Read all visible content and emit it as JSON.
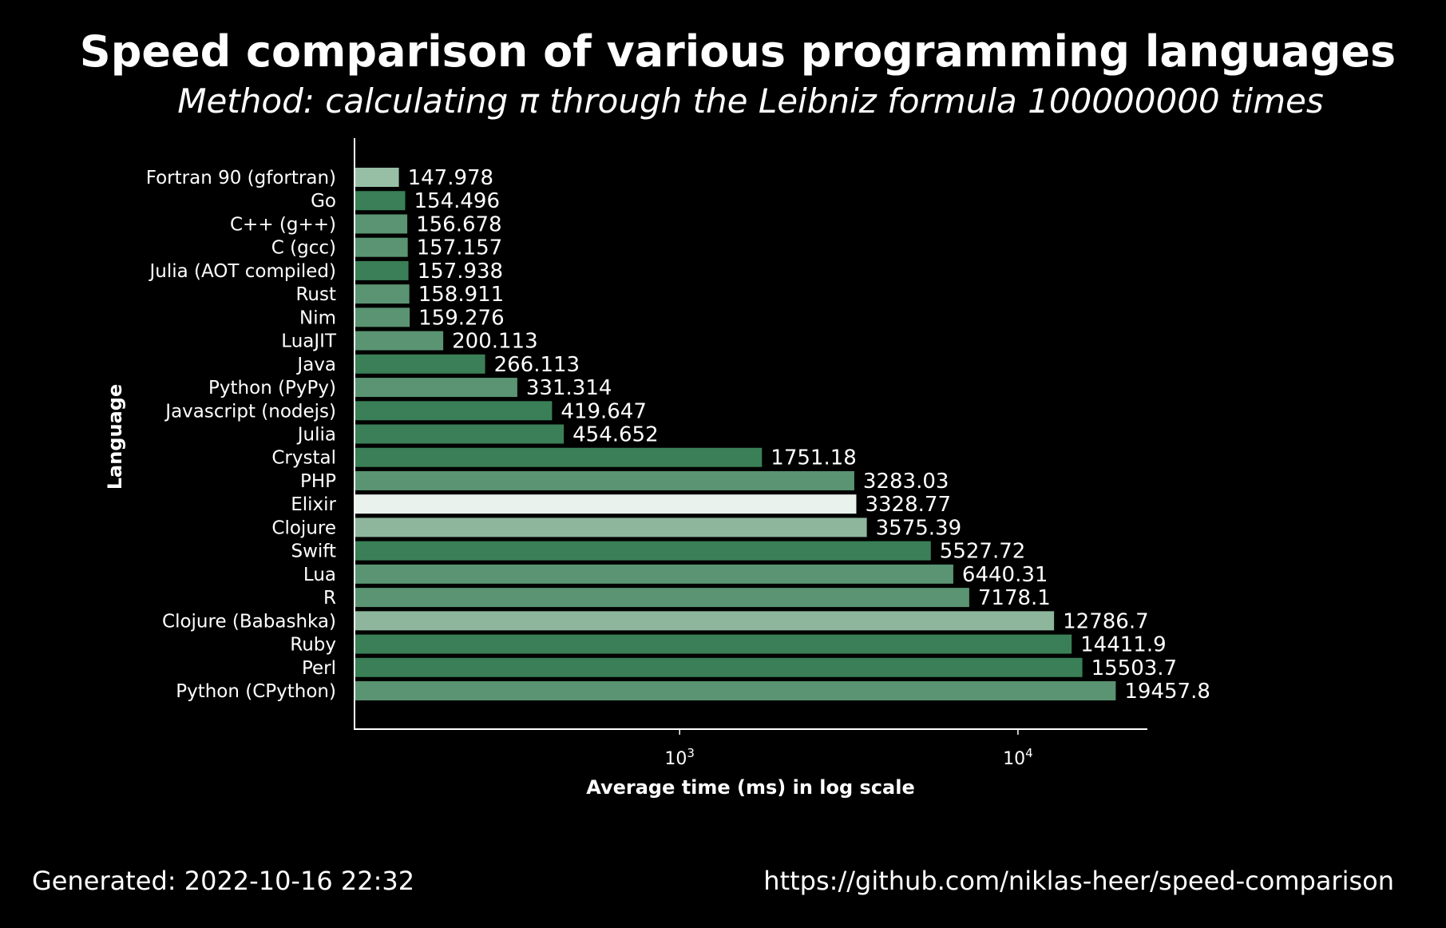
{
  "chart_data": {
    "type": "bar",
    "orientation": "horizontal",
    "title": "Speed comparison of various programming languages",
    "subtitle": "Method: calculating π through the Leibniz formula 100000000 times",
    "xlabel": "Average time (ms) in log scale",
    "ylabel": "Language",
    "x_scale": "log",
    "xlim": [
      110,
      24000
    ],
    "x_ticks": [
      {
        "value": 1000,
        "base": "10",
        "exp": "3"
      },
      {
        "value": 10000,
        "base": "10",
        "exp": "4"
      }
    ],
    "grid": false,
    "categories": [
      "Fortran 90 (gfortran)",
      "Go",
      "C++ (g++)",
      "C (gcc)",
      "Julia (AOT compiled)",
      "Rust",
      "Nim",
      "LuaJIT",
      "Java",
      "Python (PyPy)",
      "Javascript (nodejs)",
      "Julia",
      "Crystal",
      "PHP",
      "Elixir",
      "Clojure",
      "Swift",
      "Lua",
      "R",
      "Clojure (Babashka)",
      "Ruby",
      "Perl",
      "Python (CPython)"
    ],
    "values": [
      147.978,
      154.496,
      156.678,
      157.157,
      157.938,
      158.911,
      159.276,
      200.113,
      266.113,
      331.314,
      419.647,
      454.652,
      1751.18,
      3283.03,
      3328.77,
      3575.39,
      5527.72,
      6440.31,
      7178.1,
      12786.7,
      14411.9,
      15503.7,
      19457.8
    ],
    "value_labels": [
      "147.978",
      "154.496",
      "156.678",
      "157.157",
      "157.938",
      "158.911",
      "159.276",
      "200.113",
      "266.113",
      "331.314",
      "419.647",
      "454.652",
      "1751.18",
      "3283.03",
      "3328.77",
      "3575.39",
      "5527.72",
      "6440.31",
      "7178.1",
      "12786.7",
      "14411.9",
      "15503.7",
      "19457.8"
    ],
    "bar_colors": [
      "#97bfa6",
      "#3a7f57",
      "#5a9472",
      "#5a9472",
      "#3a7f57",
      "#5a9472",
      "#5a9472",
      "#5a9472",
      "#3a7f57",
      "#5a9472",
      "#3a7f57",
      "#3a7f57",
      "#3a7f57",
      "#5a9472",
      "#e9f2ec",
      "#8db69c",
      "#3a7f57",
      "#5a9472",
      "#5a9472",
      "#8db69c",
      "#3a7f57",
      "#3a7f57",
      "#5a9472"
    ]
  },
  "footer": {
    "generated": "Generated: 2022-10-16 22:32",
    "url": "https://github.com/niklas-heer/speed-comparison"
  }
}
